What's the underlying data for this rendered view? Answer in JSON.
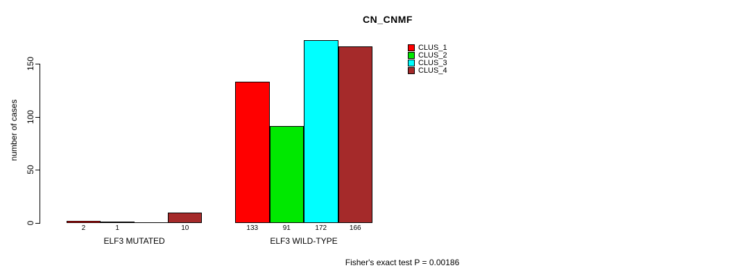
{
  "title": "CN_CNMF",
  "y_axis": {
    "label": "number of cases"
  },
  "footer": "Fisher's exact test P = 0.00186",
  "chart_data": {
    "type": "bar",
    "title": "CN_CNMF",
    "xlabel": "",
    "ylabel": "number of cases",
    "ylim": [
      0,
      175
    ],
    "y_ticks": [
      0,
      50,
      100,
      150
    ],
    "grid": false,
    "legend_position": "top-right-inside",
    "categories": [
      "ELF3 MUTATED",
      "ELF3 WILD-TYPE"
    ],
    "series": [
      {
        "name": "CLUS_1",
        "color": "#FF0000",
        "values": [
          2,
          133
        ]
      },
      {
        "name": "CLUS_2",
        "color": "#00E800",
        "values": [
          1,
          91
        ]
      },
      {
        "name": "CLUS_3",
        "color": "#00FFFF",
        "values": [
          0,
          172
        ]
      },
      {
        "name": "CLUS_4",
        "color": "#A52A2A",
        "values": [
          10,
          166
        ]
      }
    ],
    "bar_value_labels": [
      [
        "2",
        "1",
        "",
        "10"
      ],
      [
        "133",
        "91",
        "172",
        "166"
      ]
    ],
    "annotation": "Fisher's exact test P = 0.00186"
  }
}
